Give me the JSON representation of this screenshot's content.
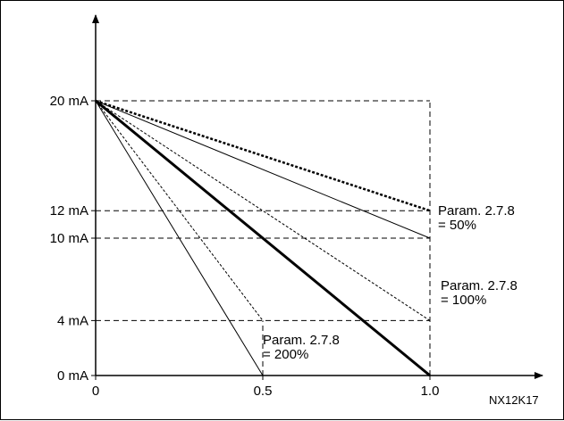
{
  "chart_data": {
    "type": "line",
    "title": "",
    "xlabel": "",
    "ylabel": "",
    "figure_id": "NX12K17",
    "x_ticks": [
      {
        "value": 0,
        "label": "0"
      },
      {
        "value": 0.5,
        "label": "0.5"
      },
      {
        "value": 1.0,
        "label": "1.0"
      }
    ],
    "y_ticks": [
      {
        "value": 0,
        "label": "0 mA"
      },
      {
        "value": 4,
        "label": "4 mA"
      },
      {
        "value": 10,
        "label": "10 mA"
      },
      {
        "value": 12,
        "label": "12 mA"
      },
      {
        "value": 20,
        "label": "20 mA"
      }
    ],
    "xlim": [
      0,
      1.0
    ],
    "ylim": [
      0,
      20
    ],
    "series": [
      {
        "style": "thin",
        "x": [
          0,
          0.5
        ],
        "y": [
          20,
          0
        ]
      },
      {
        "style": "dashed",
        "x": [
          0,
          0.5
        ],
        "y": [
          20,
          4
        ]
      },
      {
        "style": "dashed",
        "x": [
          0,
          1.0
        ],
        "y": [
          20,
          4
        ]
      },
      {
        "style": "bold",
        "x": [
          0,
          1.0
        ],
        "y": [
          20,
          0
        ]
      },
      {
        "style": "thin",
        "x": [
          0,
          1.0
        ],
        "y": [
          20,
          10
        ]
      },
      {
        "style": "dotted-bold",
        "x": [
          0,
          1.0
        ],
        "y": [
          20,
          12
        ]
      }
    ],
    "guides": [
      {
        "x": [
          0,
          1.0
        ],
        "y": [
          20,
          20
        ]
      },
      {
        "x": [
          0,
          1.0
        ],
        "y": [
          12,
          12
        ]
      },
      {
        "x": [
          0,
          1.0
        ],
        "y": [
          10,
          10
        ]
      },
      {
        "x": [
          0,
          1.0
        ],
        "y": [
          4,
          4
        ]
      },
      {
        "x": [
          0.5,
          0.5
        ],
        "y": [
          0,
          4
        ]
      },
      {
        "x": [
          1.0,
          1.0
        ],
        "y": [
          0,
          20
        ]
      }
    ],
    "annotations": [
      {
        "line1": "Param. 2.7.8",
        "line2": "= 50%"
      },
      {
        "line1": "Param. 2.7.8",
        "line2": "= 100%"
      },
      {
        "line1": "Param. 2.7.8",
        "line2": "= 200%"
      }
    ]
  }
}
